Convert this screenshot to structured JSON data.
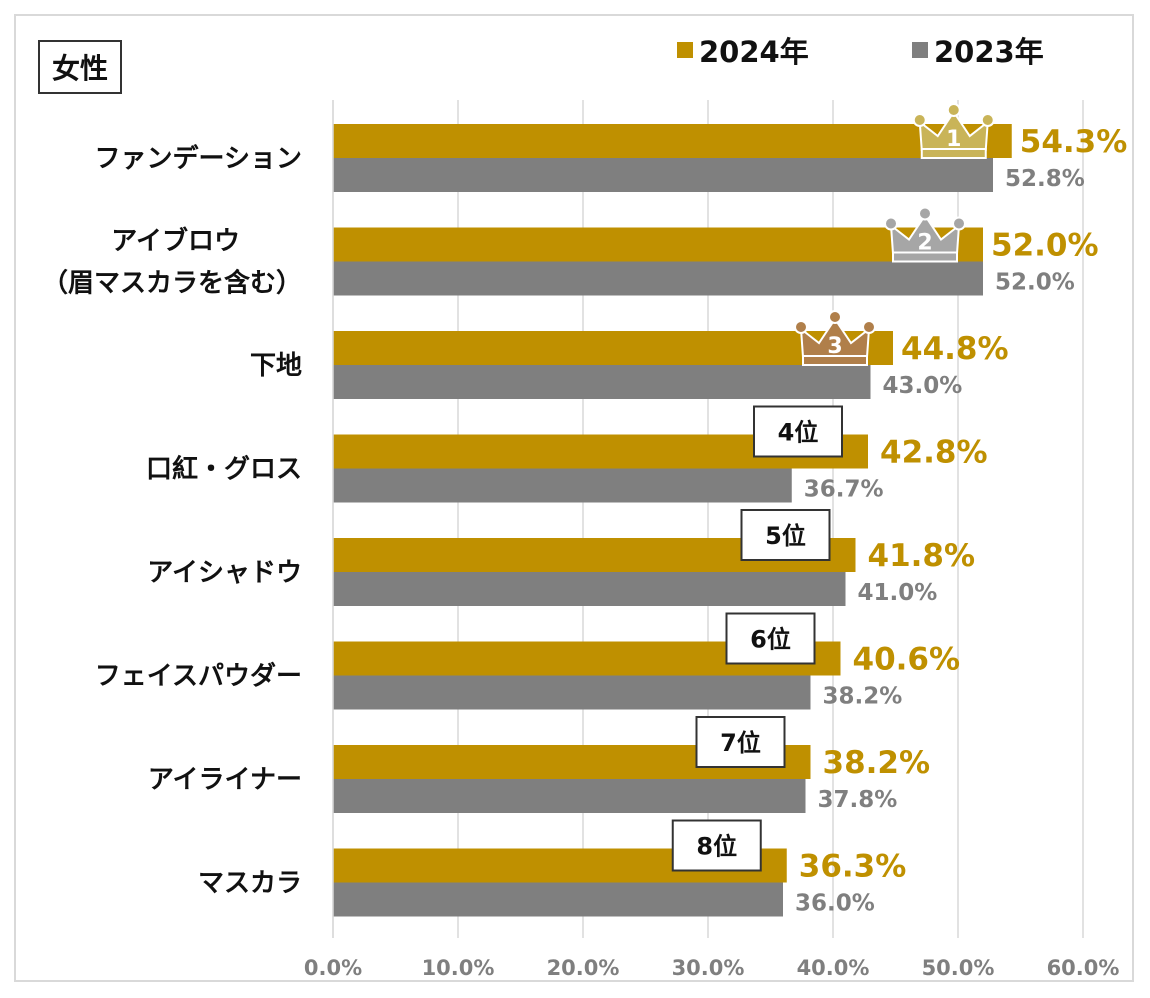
{
  "gender_label": "女性",
  "colors": {
    "y2024": "#bf9000",
    "y2023": "#7f7f7f",
    "gold": "#c9b458",
    "silver": "#a6a6a6",
    "bronze": "#b07f4a"
  },
  "legend": [
    {
      "label": "2024年",
      "color": "#bf9000"
    },
    {
      "label": "2023年",
      "color": "#7f7f7f"
    }
  ],
  "chart_data": {
    "type": "bar",
    "orientation": "horizontal",
    "categories": [
      "ファンデーション",
      "アイブロウ\n（眉マスカラを含む）",
      "下地",
      "口紅・グロス",
      "アイシャドウ",
      "フェイスパウダー",
      "アイライナー",
      "マスカラ"
    ],
    "series": [
      {
        "name": "2024年",
        "values": [
          54.3,
          52.0,
          44.8,
          42.8,
          41.8,
          40.6,
          38.2,
          36.3
        ],
        "labels": [
          "54.3%",
          "52.0%",
          "44.8%",
          "42.8%",
          "41.8%",
          "40.6%",
          "38.2%",
          "36.3%"
        ]
      },
      {
        "name": "2023年",
        "values": [
          52.8,
          52.0,
          43.0,
          36.7,
          41.0,
          38.2,
          37.8,
          36.0
        ],
        "labels": [
          "52.8%",
          "52.0%",
          "43.0%",
          "36.7%",
          "41.0%",
          "38.2%",
          "37.8%",
          "36.0%"
        ]
      }
    ],
    "ranks": [
      "1",
      "2",
      "3",
      "4位",
      "5位",
      "6位",
      "7位",
      "8位"
    ],
    "xlim": [
      0,
      60
    ],
    "xticks": [
      "0.0%",
      "10.0%",
      "20.0%",
      "30.0%",
      "40.0%",
      "50.0%",
      "60.0%"
    ],
    "grid": true,
    "legend_position": "top-right"
  }
}
